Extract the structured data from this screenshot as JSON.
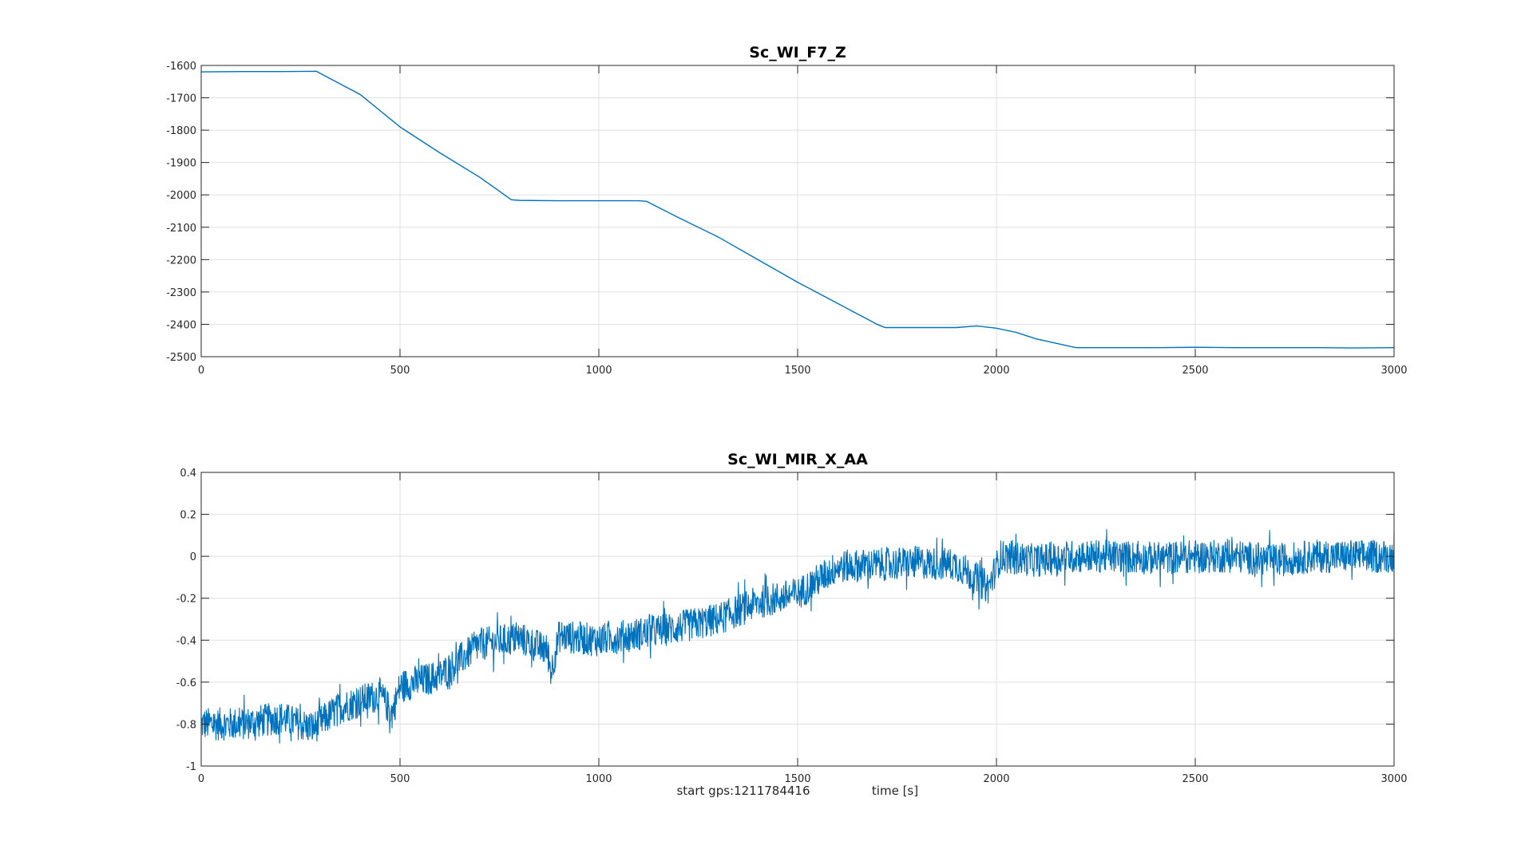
{
  "figure": {
    "footer": {
      "start_gps": "start gps:1211784416",
      "xlabel": "time [s]"
    }
  },
  "chart_data": [
    {
      "type": "line",
      "title": "Sc_WI_F7_Z",
      "xlabel": "",
      "ylabel": "",
      "xlim": [
        0,
        3000
      ],
      "ylim": [
        -2500,
        -1600
      ],
      "xticks": [
        0,
        500,
        1000,
        1500,
        2000,
        2500,
        3000
      ],
      "yticks": [
        -2500,
        -2400,
        -2300,
        -2200,
        -2100,
        -2000,
        -1900,
        -1800,
        -1700,
        -1600
      ],
      "grid": true,
      "color": "#0072BD",
      "series": [
        {
          "x": [
            0,
            100,
            200,
            290,
            300,
            400,
            500,
            600,
            700,
            780,
            800,
            900,
            1000,
            1100,
            1120,
            1200,
            1300,
            1400,
            1500,
            1600,
            1700,
            1720,
            1800,
            1900,
            1950,
            2000,
            2050,
            2100,
            2200,
            2300,
            2400,
            2500,
            2600,
            2700,
            2800,
            2900,
            3000
          ],
          "y": [
            -1620,
            -1619,
            -1619,
            -1618,
            -1625,
            -1690,
            -1790,
            -1870,
            -1945,
            -2015,
            -2017,
            -2018,
            -2018,
            -2018,
            -2020,
            -2070,
            -2130,
            -2200,
            -2270,
            -2335,
            -2400,
            -2410,
            -2410,
            -2410,
            -2405,
            -2412,
            -2425,
            -2445,
            -2472,
            -2472,
            -2472,
            -2471,
            -2472,
            -2472,
            -2472,
            -2473,
            -2472
          ]
        }
      ]
    },
    {
      "type": "line",
      "title": "Sc_WI_MIR_X_AA",
      "xlabel": "time [s]",
      "ylabel": "",
      "xlim": [
        0,
        3000
      ],
      "ylim": [
        -1,
        0.4
      ],
      "xticks": [
        0,
        500,
        1000,
        1500,
        2000,
        2500,
        3000
      ],
      "yticks": [
        -1,
        -0.8,
        -0.6,
        -0.4,
        -0.2,
        0,
        0.2,
        0.4
      ],
      "grid": true,
      "color": "#0072BD",
      "noise_amplitude": 0.08,
      "series": [
        {
          "x": [
            0,
            100,
            200,
            280,
            350,
            450,
            480,
            500,
            600,
            700,
            800,
            870,
            880,
            900,
            1000,
            1100,
            1200,
            1300,
            1400,
            1500,
            1600,
            1700,
            1800,
            1900,
            1980,
            2000,
            2010,
            2100,
            2200,
            2300,
            2400,
            2500,
            2600,
            2700,
            2800,
            2900,
            3000
          ],
          "y": [
            -0.8,
            -0.8,
            -0.77,
            -0.82,
            -0.72,
            -0.66,
            -0.75,
            -0.62,
            -0.57,
            -0.42,
            -0.39,
            -0.45,
            -0.55,
            -0.38,
            -0.4,
            -0.37,
            -0.34,
            -0.3,
            -0.22,
            -0.18,
            -0.05,
            -0.04,
            -0.03,
            -0.04,
            -0.15,
            -0.05,
            0.0,
            -0.02,
            0.0,
            0.0,
            -0.01,
            0.0,
            0.0,
            -0.02,
            0.0,
            0.0,
            0.0
          ]
        }
      ]
    }
  ]
}
